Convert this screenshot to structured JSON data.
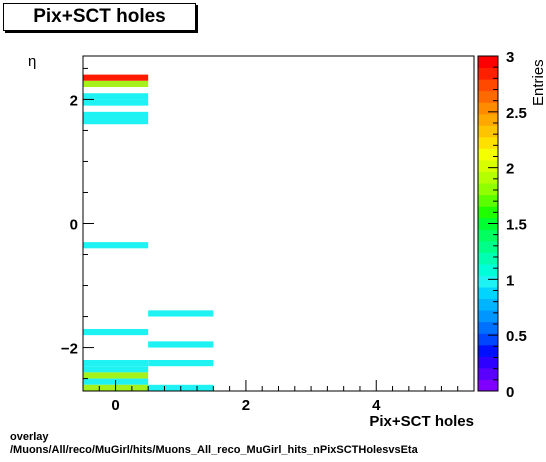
{
  "title": "Pix+SCT holes",
  "footer": {
    "line1": "overlay",
    "line2": "/Muons/All/reco/MuGirl/hits/Muons_All_reco_MuGirl_hits_nPixSCTHolesvsEta"
  },
  "chart_data": {
    "type": "heatmap",
    "title": "Pix+SCT holes",
    "xlabel": "Pix+SCT holes",
    "ylabel": "η",
    "zlabel": "Entries",
    "xlim": [
      -0.5,
      5.5
    ],
    "ylim": [
      -2.7,
      2.7
    ],
    "zlim": [
      0,
      3
    ],
    "x_ticks": [
      0,
      2,
      4
    ],
    "x_tick_labels": [
      "0",
      "2",
      "4"
    ],
    "y_ticks": [
      -2,
      0,
      2
    ],
    "y_tick_labels": [
      "−2",
      "0",
      "2"
    ],
    "z_ticks": [
      0,
      0.5,
      1,
      1.5,
      2,
      2.5,
      3
    ],
    "z_tick_labels": [
      "0",
      "0.5",
      "1",
      "1.5",
      "2",
      "2.5",
      "3"
    ],
    "bin_height": 0.1,
    "cells": [
      {
        "x": 0,
        "y": 2.35,
        "z": 3
      },
      {
        "x": 0,
        "y": 2.25,
        "z": 2
      },
      {
        "x": 0,
        "y": 2.05,
        "z": 1
      },
      {
        "x": 0,
        "y": 1.95,
        "z": 1
      },
      {
        "x": 0,
        "y": 1.75,
        "z": 1
      },
      {
        "x": 0,
        "y": 1.65,
        "z": 1
      },
      {
        "x": 0,
        "y": -0.35,
        "z": 1
      },
      {
        "x": 1,
        "y": -1.45,
        "z": 1
      },
      {
        "x": 0,
        "y": -1.75,
        "z": 1
      },
      {
        "x": 1,
        "y": -1.95,
        "z": 1
      },
      {
        "x": 0,
        "y": -2.25,
        "z": 1
      },
      {
        "x": 1,
        "y": -2.25,
        "z": 1
      },
      {
        "x": 0,
        "y": -2.35,
        "z": 1
      },
      {
        "x": 0,
        "y": -2.45,
        "z": 2
      },
      {
        "x": 0,
        "y": -2.55,
        "z": 1
      },
      {
        "x": 0,
        "y": -2.65,
        "z": 2
      },
      {
        "x": 1,
        "y": -2.65,
        "z": 1
      }
    ],
    "colors": {
      "z1": "#1ff2f2",
      "z2": "#a4f21a",
      "z3": "#ff1a00"
    },
    "palette": [
      "#7f00ff",
      "#5a00ff",
      "#2e00ff",
      "#0010ff",
      "#0045ff",
      "#0070ff",
      "#0096ff",
      "#00b4ff",
      "#00d4ff",
      "#1ff2f2",
      "#00ffd8",
      "#00ffb0",
      "#00ff88",
      "#00ff5f",
      "#00ff30",
      "#20ff00",
      "#5cff00",
      "#90ff00",
      "#b4ff00",
      "#d8ff00",
      "#f4ff00",
      "#ffe100",
      "#ffc400",
      "#ffa800",
      "#ff8c00",
      "#ff6a00",
      "#ff4800",
      "#ff2000",
      "#ff0000"
    ]
  }
}
